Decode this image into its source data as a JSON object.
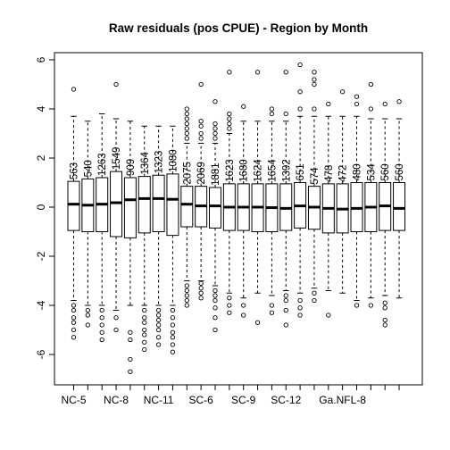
{
  "chart_data": {
    "type": "boxplot",
    "title": "Raw residuals (pos CPUE) - Region by Month",
    "xlabel": "",
    "ylabel": "",
    "ylim": [
      -7.2,
      6.3
    ],
    "yticks": [
      -6,
      -4,
      -2,
      0,
      2,
      4,
      6
    ],
    "x_tick_labels": [
      "NC-5",
      "NC-8",
      "NC-11",
      "SC-6",
      "SC-9",
      "SC-12",
      "Ga.NFL-8"
    ],
    "x_tick_label_groups": [
      1,
      4,
      7,
      10,
      13,
      16,
      20
    ],
    "groups": [
      {
        "n": "563",
        "min": -3.8,
        "q1": -0.95,
        "median": 0.12,
        "q3": 1.05,
        "max": 3.7,
        "outliers": [
          4.8,
          -4.0,
          -4.2,
          -4.5,
          -4.7,
          -5.0,
          -5.3
        ]
      },
      {
        "n": "540",
        "min": -4.0,
        "q1": -1.0,
        "median": 0.08,
        "q3": 1.15,
        "max": 3.5,
        "outliers": [
          -4.2,
          -4.4,
          -4.8
        ]
      },
      {
        "n": "1263",
        "min": -4.0,
        "q1": -1.0,
        "median": 0.12,
        "q3": 1.2,
        "max": 3.8,
        "outliers": [
          -4.2,
          -4.5,
          -4.8,
          -5.1,
          -5.4
        ]
      },
      {
        "n": "1549",
        "min": -4.2,
        "q1": -1.2,
        "median": 0.18,
        "q3": 1.45,
        "max": 3.6,
        "outliers": [
          5.0,
          -4.5,
          -5.0
        ]
      },
      {
        "n": "909",
        "min": -4.0,
        "q1": -1.25,
        "median": 0.3,
        "q3": 1.2,
        "max": 3.5,
        "outliers": [
          -5.1,
          -5.4,
          -6.2,
          -6.7
        ]
      },
      {
        "n": "1364",
        "min": -4.0,
        "q1": -1.05,
        "median": 0.35,
        "q3": 1.25,
        "max": 3.3,
        "outliers": [
          -4.2,
          -4.5,
          -4.7,
          -5.0,
          -5.2,
          -5.5,
          -5.8
        ]
      },
      {
        "n": "1323",
        "min": -4.0,
        "q1": -1.0,
        "median": 0.35,
        "q3": 1.3,
        "max": 3.3,
        "outliers": [
          -4.2,
          -4.4,
          -4.6,
          -4.8,
          -5.0,
          -5.3,
          -5.6
        ]
      },
      {
        "n": "1080",
        "min": -4.0,
        "q1": -1.15,
        "median": 0.32,
        "q3": 1.35,
        "max": 3.3,
        "outliers": [
          -4.2,
          -4.5,
          -4.8,
          -5.1,
          -5.3,
          -5.6,
          -5.9
        ]
      },
      {
        "n": "2075",
        "min": -3.0,
        "q1": -0.8,
        "median": 0.12,
        "q3": 0.85,
        "max": 2.6,
        "outliers": [
          2.8,
          3.0,
          3.2,
          3.4,
          3.6,
          3.8,
          4.0,
          -3.2,
          -3.4,
          -3.6,
          -3.8,
          -4.0
        ]
      },
      {
        "n": "2069",
        "min": -3.0,
        "q1": -0.8,
        "median": 0.05,
        "q3": 0.85,
        "max": 2.6,
        "outliers": [
          2.8,
          3.0,
          3.3,
          3.5,
          5.0,
          -3.1,
          -3.3,
          -3.5,
          -3.7
        ]
      },
      {
        "n": "1881",
        "min": -3.2,
        "q1": -0.85,
        "median": 0.05,
        "q3": 0.8,
        "max": 2.6,
        "outliers": [
          2.8,
          3.0,
          3.2,
          3.4,
          4.3,
          -3.4,
          -3.6,
          -3.8,
          -4.1,
          -4.5,
          -5.0
        ]
      },
      {
        "n": "1623",
        "min": -3.5,
        "q1": -0.95,
        "median": 0.0,
        "q3": 0.95,
        "max": 3.0,
        "outliers": [
          3.2,
          3.4,
          3.6,
          3.8,
          5.5,
          -3.7,
          -4.0,
          -4.3
        ]
      },
      {
        "n": "1680",
        "min": -3.7,
        "q1": -0.95,
        "median": 0.0,
        "q3": 0.95,
        "max": 3.5,
        "outliers": [
          4.1,
          -4.0,
          -4.4
        ]
      },
      {
        "n": "1624",
        "min": -3.5,
        "q1": -1.0,
        "median": 0.0,
        "q3": 0.95,
        "max": 3.5,
        "outliers": [
          5.5,
          -4.7
        ]
      },
      {
        "n": "1654",
        "min": -3.6,
        "q1": -1.0,
        "median": -0.02,
        "q3": 0.95,
        "max": 3.5,
        "outliers": [
          3.8,
          4.0,
          -4.0,
          -4.3
        ]
      },
      {
        "n": "1392",
        "min": -3.4,
        "q1": -0.95,
        "median": -0.05,
        "q3": 0.95,
        "max": 3.5,
        "outliers": [
          3.8,
          5.5,
          -3.6,
          -3.8,
          -4.2,
          -4.8
        ]
      },
      {
        "n": "651",
        "min": -3.5,
        "q1": -0.85,
        "median": 0.05,
        "q3": 1.0,
        "max": 3.7,
        "outliers": [
          4.0,
          4.7,
          5.8,
          -3.8,
          -4.1,
          -4.4
        ]
      },
      {
        "n": "574",
        "min": -3.3,
        "q1": -0.9,
        "median": 0.0,
        "q3": 0.85,
        "max": 3.7,
        "outliers": [
          4.0,
          5.0,
          5.5,
          5.2,
          -3.5,
          -3.8
        ]
      },
      {
        "n": "478",
        "min": -3.4,
        "q1": -1.05,
        "median": -0.05,
        "q3": 0.95,
        "max": 3.7,
        "outliers": [
          4.2,
          -4.4
        ]
      },
      {
        "n": "472",
        "min": -3.5,
        "q1": -1.05,
        "median": -0.08,
        "q3": 0.95,
        "max": 3.7,
        "outliers": [
          4.7
        ]
      },
      {
        "n": "480",
        "min": -3.8,
        "q1": -1.0,
        "median": -0.05,
        "q3": 1.0,
        "max": 3.7,
        "outliers": [
          4.2,
          4.5,
          -4.0
        ]
      },
      {
        "n": "534",
        "min": -3.7,
        "q1": -1.0,
        "median": 0.0,
        "q3": 1.0,
        "max": 3.6,
        "outliers": [
          4.0,
          5.0,
          -4.0
        ]
      },
      {
        "n": "560",
        "min": -3.6,
        "q1": -0.95,
        "median": 0.05,
        "q3": 1.0,
        "max": 3.6,
        "outliers": [
          4.2,
          -3.9,
          -4.1,
          -4.6,
          -4.8
        ]
      },
      {
        "n": "560",
        "min": -3.7,
        "q1": -0.95,
        "median": -0.05,
        "q3": 1.0,
        "max": 3.6,
        "outliers": [
          4.3
        ]
      }
    ]
  }
}
